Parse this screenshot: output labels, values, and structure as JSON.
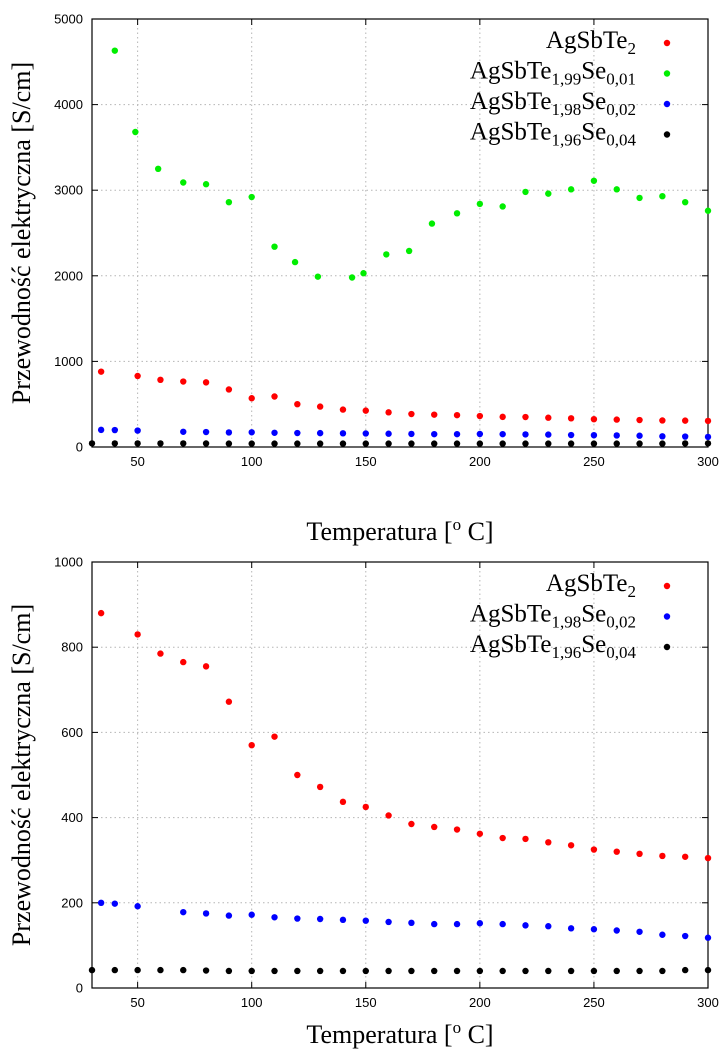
{
  "chart_data": [
    {
      "type": "scatter",
      "xlabel": "Temperatura [",
      "xlabel_sup": "o",
      "xlabel_tail": " C]",
      "ylabel": "Przewodność elektryczna [S/cm]",
      "xlim": [
        30,
        300
      ],
      "ylim": [
        0,
        5000
      ],
      "xticks": [
        "50",
        "100",
        "150",
        "200",
        "250",
        "300"
      ],
      "yticks": [
        "0",
        "1000",
        "2000",
        "3000",
        "4000",
        "5000"
      ],
      "grid": true,
      "legend_position": "top-right",
      "series": [
        {
          "name": "AgSbTe2",
          "base": "AgSbTe",
          "sub1": "2",
          "mid": "",
          "sub2": "",
          "color": "#ff0000",
          "x": [
            34,
            50,
            60,
            70,
            80,
            90,
            100,
            110,
            120,
            130,
            140,
            150,
            160,
            170,
            180,
            190,
            200,
            210,
            220,
            230,
            240,
            250,
            260,
            270,
            280,
            290,
            300
          ],
          "y": [
            880,
            830,
            785,
            765,
            755,
            672,
            570,
            590,
            500,
            472,
            437,
            425,
            405,
            385,
            378,
            372,
            362,
            352,
            350,
            342,
            335,
            325,
            320,
            315,
            310,
            308,
            305
          ]
        },
        {
          "name": "AgSbTe1,99Se0,01",
          "base": "AgSbTe",
          "sub1": "1,99",
          "mid": "Se",
          "sub2": "0,01",
          "color": "#00ee00",
          "x": [
            40,
            49,
            59,
            70,
            80,
            90,
            100,
            110,
            119,
            129,
            144,
            149,
            159,
            169,
            179,
            190,
            200,
            210,
            220,
            230,
            240,
            250,
            260,
            270,
            280,
            290,
            300
          ],
          "y": [
            4630,
            3680,
            3250,
            3090,
            3070,
            2860,
            2920,
            2340,
            2160,
            1990,
            1980,
            2030,
            2250,
            2290,
            2610,
            2730,
            2840,
            2810,
            2980,
            2960,
            3010,
            3110,
            3010,
            2910,
            2930,
            2860,
            2760
          ]
        },
        {
          "name": "AgSbTe1,98Se0,02",
          "base": "AgSbTe",
          "sub1": "1,98",
          "mid": "Se",
          "sub2": "0,02",
          "color": "#0000ff",
          "x": [
            34,
            40,
            50,
            70,
            80,
            90,
            100,
            110,
            120,
            130,
            140,
            150,
            160,
            170,
            180,
            190,
            200,
            210,
            220,
            230,
            240,
            250,
            260,
            270,
            280,
            290,
            300
          ],
          "y": [
            200,
            198,
            192,
            178,
            175,
            170,
            172,
            166,
            163,
            162,
            160,
            158,
            155,
            153,
            150,
            150,
            152,
            150,
            147,
            145,
            140,
            138,
            135,
            132,
            125,
            122,
            118
          ]
        },
        {
          "name": "AgSbTe1,96Se0,04",
          "base": "AgSbTe",
          "sub1": "1,96",
          "mid": "Se",
          "sub2": "0,04",
          "color": "#000000",
          "x": [
            30,
            40,
            50,
            60,
            70,
            80,
            90,
            100,
            110,
            120,
            130,
            140,
            150,
            160,
            170,
            180,
            190,
            200,
            210,
            220,
            230,
            240,
            250,
            260,
            270,
            280,
            290,
            300
          ],
          "y": [
            42,
            42,
            42,
            42,
            42,
            41,
            40,
            40,
            40,
            40,
            40,
            40,
            40,
            40,
            40,
            40,
            40,
            40,
            40,
            40,
            40,
            40,
            40,
            40,
            40,
            40,
            42,
            42
          ]
        }
      ]
    },
    {
      "type": "scatter",
      "xlabel": "Temperatura [",
      "xlabel_sup": "o",
      "xlabel_tail": " C]",
      "ylabel": "Przewodność elektryczna [S/cm]",
      "xlim": [
        30,
        300
      ],
      "ylim": [
        0,
        1000
      ],
      "xticks": [
        "50",
        "100",
        "150",
        "200",
        "250",
        "300"
      ],
      "yticks": [
        "0",
        "200",
        "400",
        "600",
        "800",
        "1000"
      ],
      "grid": true,
      "legend_position": "top-right",
      "series": [
        {
          "name": "AgSbTe2",
          "base": "AgSbTe",
          "sub1": "2",
          "mid": "",
          "sub2": "",
          "color": "#ff0000",
          "x": [
            34,
            50,
            60,
            70,
            80,
            90,
            100,
            110,
            120,
            130,
            140,
            150,
            160,
            170,
            180,
            190,
            200,
            210,
            220,
            230,
            240,
            250,
            260,
            270,
            280,
            290,
            300
          ],
          "y": [
            880,
            830,
            785,
            765,
            755,
            672,
            570,
            590,
            500,
            472,
            437,
            425,
            405,
            385,
            378,
            372,
            362,
            352,
            350,
            342,
            335,
            325,
            320,
            315,
            310,
            308,
            305
          ]
        },
        {
          "name": "AgSbTe1,98Se0,02",
          "base": "AgSbTe",
          "sub1": "1,98",
          "mid": "Se",
          "sub2": "0,02",
          "color": "#0000ff",
          "x": [
            34,
            40,
            50,
            70,
            80,
            90,
            100,
            110,
            120,
            130,
            140,
            150,
            160,
            170,
            180,
            190,
            200,
            210,
            220,
            230,
            240,
            250,
            260,
            270,
            280,
            290,
            300
          ],
          "y": [
            200,
            198,
            192,
            178,
            175,
            170,
            172,
            166,
            163,
            162,
            160,
            158,
            155,
            153,
            150,
            150,
            152,
            150,
            147,
            145,
            140,
            138,
            135,
            132,
            125,
            122,
            118
          ]
        },
        {
          "name": "AgSbTe1,96Se0,04",
          "base": "AgSbTe",
          "sub1": "1,96",
          "mid": "Se",
          "sub2": "0,04",
          "color": "#000000",
          "x": [
            30,
            40,
            50,
            60,
            70,
            80,
            90,
            100,
            110,
            120,
            130,
            140,
            150,
            160,
            170,
            180,
            190,
            200,
            210,
            220,
            230,
            240,
            250,
            260,
            270,
            280,
            290,
            300
          ],
          "y": [
            42,
            42,
            42,
            42,
            42,
            41,
            40,
            40,
            40,
            40,
            40,
            40,
            40,
            40,
            40,
            40,
            40,
            40,
            40,
            40,
            40,
            40,
            40,
            40,
            40,
            40,
            42,
            42
          ]
        }
      ]
    }
  ]
}
